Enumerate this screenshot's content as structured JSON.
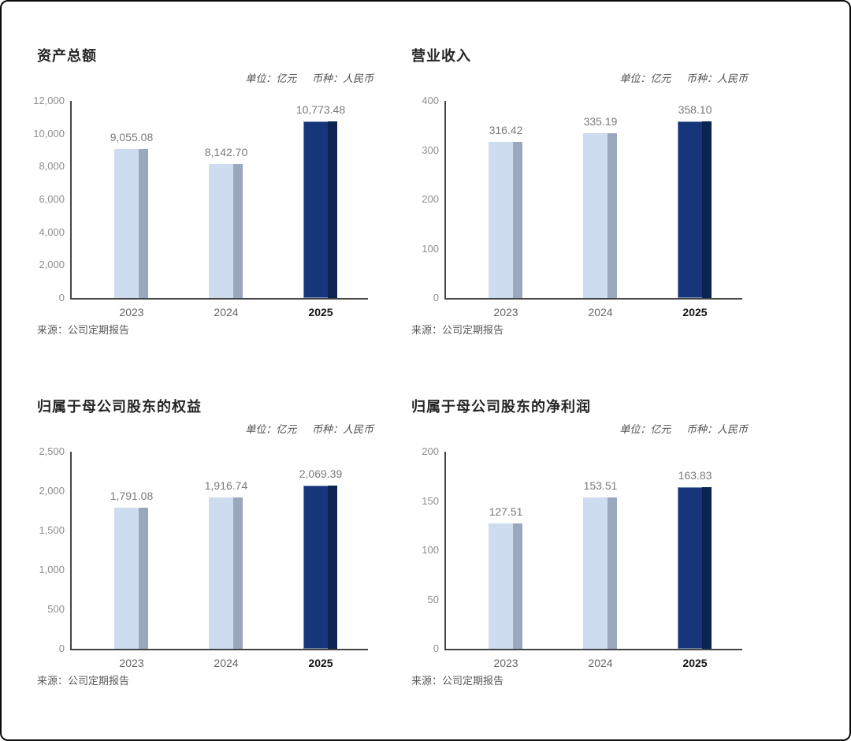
{
  "palette": {
    "bar_past_fill": "#cddcee",
    "bar_past_side": "#9aa8be",
    "bar_current_fill": "#17357a",
    "bar_current_side": "#0d2351",
    "axis_color": "#454545"
  },
  "chart_data": [
    {
      "type": "bar",
      "title": "资产总额",
      "unit_label": "单位：亿元",
      "currency_label": "币种：人民币",
      "source": "来源：公司定期报告",
      "categories": [
        "2023",
        "2024",
        "2025"
      ],
      "values": [
        9055.08,
        8142.7,
        10773.48
      ],
      "value_labels": [
        "9,055.08",
        "8,142.70",
        "10,773.48"
      ],
      "ylim": [
        0,
        12000
      ],
      "yticks": [
        "0",
        "2,000",
        "4,000",
        "6,000",
        "8,000",
        "10,000",
        "12,000"
      ],
      "highlight_index": 2,
      "legend": "none",
      "grid": false
    },
    {
      "type": "bar",
      "title": "营业收入",
      "unit_label": "单位：亿元",
      "currency_label": "币种：人民币",
      "source": "来源：公司定期报告",
      "categories": [
        "2023",
        "2024",
        "2025"
      ],
      "values": [
        316.42,
        335.19,
        358.1
      ],
      "value_labels": [
        "316.42",
        "335.19",
        "358.10"
      ],
      "ylim": [
        0,
        400
      ],
      "yticks": [
        "0",
        "100",
        "200",
        "300",
        "400"
      ],
      "highlight_index": 2,
      "legend": "none",
      "grid": false
    },
    {
      "type": "bar",
      "title": "归属于母公司股东的权益",
      "unit_label": "单位：亿元",
      "currency_label": "币种：人民币",
      "source": "来源：公司定期报告",
      "categories": [
        "2023",
        "2024",
        "2025"
      ],
      "values": [
        1791.08,
        1916.74,
        2069.39
      ],
      "value_labels": [
        "1,791.08",
        "1,916.74",
        "2,069.39"
      ],
      "ylim": [
        0,
        2500
      ],
      "yticks": [
        "0",
        "500",
        "1,000",
        "1,500",
        "2,000",
        "2,500"
      ],
      "highlight_index": 2,
      "legend": "none",
      "grid": false
    },
    {
      "type": "bar",
      "title": "归属于母公司股东的净利润",
      "unit_label": "单位：亿元",
      "currency_label": "币种：人民币",
      "source": "来源：公司定期报告",
      "categories": [
        "2023",
        "2024",
        "2025"
      ],
      "values": [
        127.51,
        153.51,
        163.83
      ],
      "value_labels": [
        "127.51",
        "153.51",
        "163.83"
      ],
      "ylim": [
        0,
        200
      ],
      "yticks": [
        "0",
        "50",
        "100",
        "150",
        "200"
      ],
      "highlight_index": 2,
      "legend": "none",
      "grid": false
    }
  ]
}
